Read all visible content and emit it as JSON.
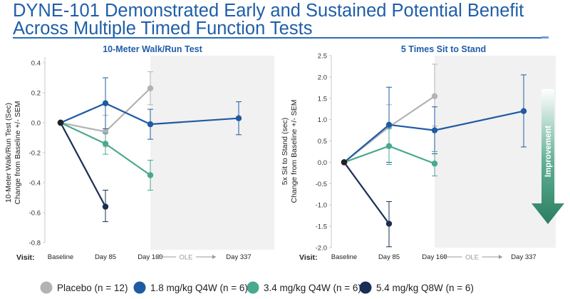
{
  "slide": {
    "title_line1": "DYNE-101 Demonstrated Early and Sustained Potential Benefit",
    "title_line2": "Across Multiple Timed Function Tests",
    "visit_label": "Visit:",
    "improvement_label": "Improvement"
  },
  "colors": {
    "placebo": "#b3b3b3",
    "q4w_18": "#1f5aa3",
    "q4w_34": "#4aa88f",
    "q8w_54": "#1a2f55",
    "shade": "#f1f1f1",
    "title": "#1f5ea8",
    "arrow": "#2c8a6c"
  },
  "legend": [
    {
      "key": "placebo",
      "label": "Placebo (n = 12)"
    },
    {
      "key": "q4w_18",
      "label": "1.8 mg/kg Q4W (n = 6)"
    },
    {
      "key": "q4w_34",
      "label": "3.4 mg/kg Q4W (n = 6)"
    },
    {
      "key": "q8w_54",
      "label": "5.4 mg/kg Q8W (n = 6)"
    }
  ],
  "chart_data": [
    {
      "type": "line",
      "title": "10-Meter Walk/Run Test",
      "ylabel_line1": "10-Meter Walk/Run Test (Sec)",
      "ylabel_line2": "Change from Baseline +/- SEM",
      "ylim": [
        -0.8,
        0.45
      ],
      "yticks": [
        "0.4",
        "0.2",
        "0.0",
        "-0.2",
        "-0.4",
        "-0.6",
        "-0.8"
      ],
      "ytick_values": [
        0.4,
        0.2,
        0.0,
        -0.2,
        -0.4,
        -0.6,
        -0.8
      ],
      "x_categories": [
        "Baseline",
        "Day 85",
        "Day 169",
        "Day 337"
      ],
      "ole_label": "OLE",
      "ole_start": "Day 169",
      "series": [
        {
          "key": "placebo",
          "points": [
            {
              "x": "Baseline",
              "y": 0.0
            },
            {
              "x": "Day 85",
              "y": -0.06,
              "lo": -0.16,
              "hi": 0.05
            },
            {
              "x": "Day 169",
              "y": 0.23,
              "lo": 0.12,
              "hi": 0.34
            }
          ]
        },
        {
          "key": "q4w_18",
          "points": [
            {
              "x": "Baseline",
              "y": 0.0
            },
            {
              "x": "Day 85",
              "y": 0.13,
              "lo": -0.04,
              "hi": 0.3
            },
            {
              "x": "Day 169",
              "y": -0.01,
              "lo": -0.11,
              "hi": 0.09
            },
            {
              "x": "Day 337",
              "y": 0.03,
              "lo": -0.08,
              "hi": 0.14
            }
          ]
        },
        {
          "key": "q4w_34",
          "points": [
            {
              "x": "Baseline",
              "y": 0.0
            },
            {
              "x": "Day 85",
              "y": -0.14,
              "lo": -0.21,
              "hi": -0.07
            },
            {
              "x": "Day 169",
              "y": -0.35,
              "lo": -0.45,
              "hi": -0.25
            }
          ]
        },
        {
          "key": "q8w_54",
          "points": [
            {
              "x": "Baseline",
              "y": 0.0
            },
            {
              "x": "Day 85",
              "y": -0.56,
              "lo": -0.66,
              "hi": -0.45
            }
          ]
        }
      ]
    },
    {
      "type": "line",
      "title": "5 Times Sit to Stand",
      "ylabel_line1": "5x Sit to Stand (sec)",
      "ylabel_line2": "Change from Baseline +/- SEM",
      "ylim": [
        -2.0,
        2.5
      ],
      "yticks": [
        "2.5",
        "2.0",
        "1.5",
        "1.0",
        "0.5",
        "0.0",
        "-0.5",
        "-1.0",
        "-1.5",
        "-2.0"
      ],
      "ytick_values": [
        2.5,
        2.0,
        1.5,
        1.0,
        0.5,
        0.0,
        -0.5,
        -1.0,
        -1.5,
        -2.0
      ],
      "x_categories": [
        "Baseline",
        "Day 85",
        "Day 169",
        "Day 337"
      ],
      "ole_label": "OLE",
      "ole_start": "Day 169",
      "series": [
        {
          "key": "placebo",
          "points": [
            {
              "x": "Baseline",
              "y": 0.0
            },
            {
              "x": "Day 85",
              "y": 0.83,
              "lo": 0.0,
              "hi": 1.35
            },
            {
              "x": "Day 169",
              "y": 1.55,
              "lo": 0.85,
              "hi": 2.3
            }
          ]
        },
        {
          "key": "q4w_18",
          "points": [
            {
              "x": "Baseline",
              "y": 0.0
            },
            {
              "x": "Day 85",
              "y": 0.88,
              "lo": 0.0,
              "hi": 1.76
            },
            {
              "x": "Day 169",
              "y": 0.75,
              "lo": 0.2,
              "hi": 1.3
            },
            {
              "x": "Day 337",
              "y": 1.2,
              "lo": 0.36,
              "hi": 2.05
            }
          ]
        },
        {
          "key": "q4w_34",
          "points": [
            {
              "x": "Baseline",
              "y": 0.0
            },
            {
              "x": "Day 85",
              "y": 0.38,
              "lo": -0.05,
              "hi": 0.8
            },
            {
              "x": "Day 169",
              "y": -0.03,
              "lo": -0.32,
              "hi": 0.25
            }
          ]
        },
        {
          "key": "q8w_54",
          "points": [
            {
              "x": "Baseline",
              "y": 0.0
            },
            {
              "x": "Day 85",
              "y": -1.44,
              "lo": -1.98,
              "hi": -0.92
            }
          ]
        }
      ]
    }
  ]
}
